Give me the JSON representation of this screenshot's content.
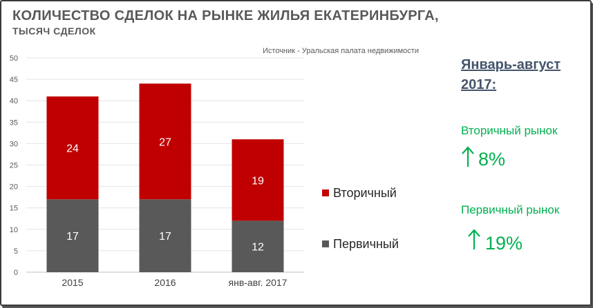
{
  "title": "КОЛИЧЕСТВО СДЕЛОК НА  РЫНКЕ ЖИЛЬЯ ЕКАТЕРИНБУРГА,",
  "subtitle": "ТЫСЯЧ СДЕЛОК",
  "source": "Источник - Уральская палата недвижимости",
  "side_panel": {
    "heading": "Январь-август 2017:",
    "secondary_label": "Вторичный рынок",
    "secondary_value": "8%",
    "primary_label": "Первичный рынок",
    "primary_value": "19%",
    "arrow_icon": "arrow-up-icon"
  },
  "colors": {
    "secondary": "#c00000",
    "primary": "#595959",
    "accent_green": "#00b050",
    "heading": "#44546a"
  },
  "chart_data": {
    "type": "bar",
    "stacked": true,
    "categories": [
      "2015",
      "2016",
      "янв-авг. 2017"
    ],
    "series": [
      {
        "name": "Первичный",
        "values": [
          17,
          17,
          12
        ],
        "color": "#595959"
      },
      {
        "name": "Вторичный",
        "values": [
          24,
          27,
          19
        ],
        "color": "#c00000"
      }
    ],
    "ylim": [
      0,
      50
    ],
    "yticks": [
      0,
      5,
      10,
      15,
      20,
      25,
      30,
      35,
      40,
      45,
      50
    ],
    "grid": true,
    "legend_position": "right",
    "legend_order": [
      "Вторичный",
      "Первичный"
    ]
  }
}
